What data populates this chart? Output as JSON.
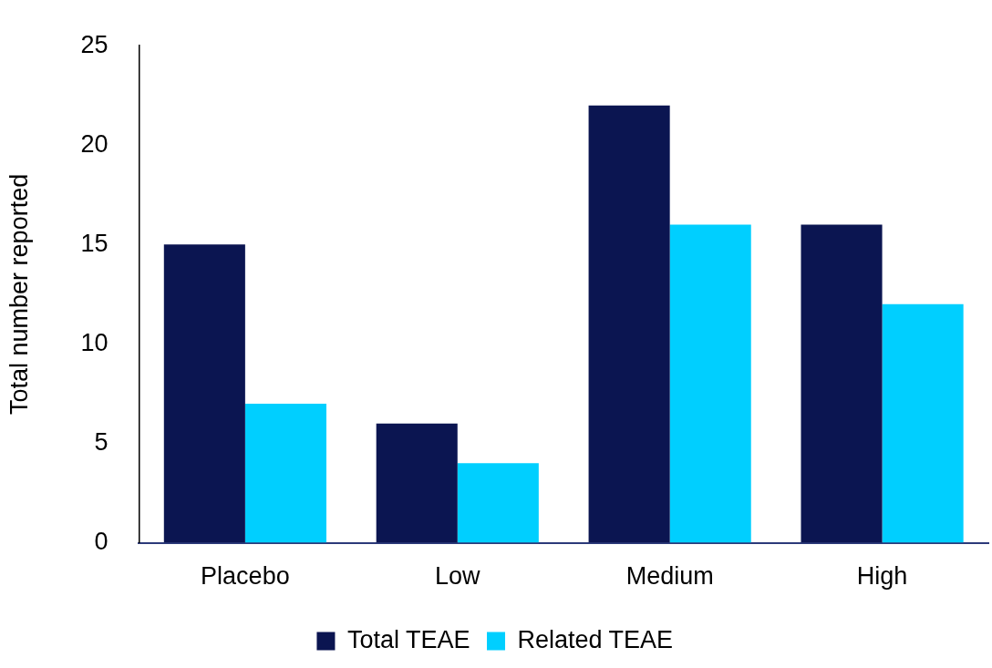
{
  "chart_data": {
    "type": "bar",
    "ylabel": "Total number reported",
    "categories": [
      "Placebo",
      "Low",
      "Medium",
      "High"
    ],
    "series": [
      {
        "name": "Total TEAE",
        "color": "#0b1551",
        "values": [
          15,
          6,
          22,
          16
        ]
      },
      {
        "name": "Related TEAE",
        "color": "#00cfff",
        "values": [
          7,
          4,
          16,
          12
        ]
      }
    ],
    "ylim": [
      0,
      25
    ],
    "yticks": [
      0,
      5,
      10,
      15,
      20,
      25
    ],
    "grid": false,
    "legend": "bottom"
  }
}
